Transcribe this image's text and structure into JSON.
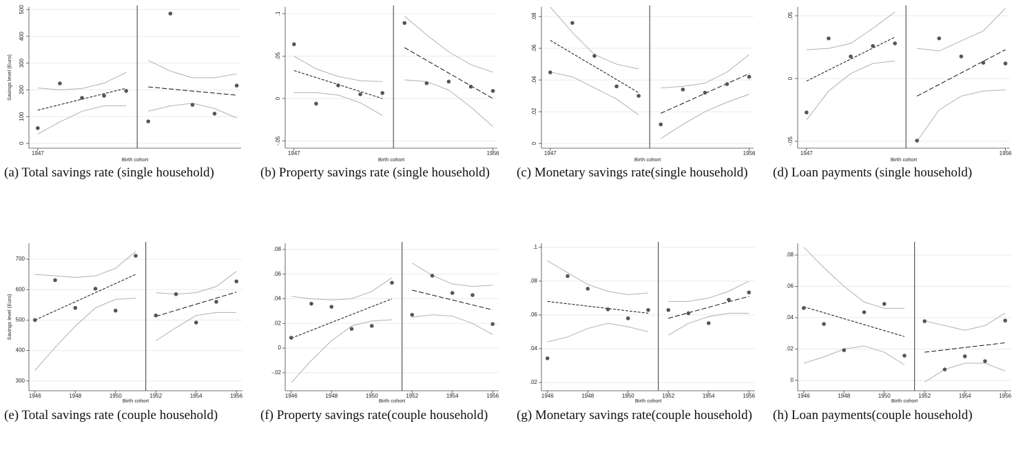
{
  "chart_data": [
    {
      "type": "scatter",
      "caption": "(a) Total savings rate (single household)",
      "xlabel": "Birth cohort",
      "ylabel": "Savings level (Euro)",
      "x": [
        1947,
        1948,
        1949,
        1950,
        1951,
        1952,
        1953,
        1954,
        1955,
        1956
      ],
      "values": [
        57,
        224,
        170,
        178,
        196,
        82,
        485,
        144,
        111,
        216
      ],
      "cutoff": 1951.5,
      "fit": [
        {
          "x": [
            1947,
            1951
          ],
          "values": [
            124,
            206
          ]
        },
        {
          "x": [
            1952,
            1956
          ],
          "values": [
            211,
            180
          ]
        }
      ],
      "ci": [
        {
          "x": [
            1947,
            1948,
            1949,
            1950,
            1951
          ],
          "upper": [
            207,
            200,
            205,
            225,
            265
          ],
          "lower": [
            35,
            80,
            120,
            140,
            140
          ]
        },
        {
          "x": [
            1952,
            1953,
            1954,
            1955,
            1956
          ],
          "upper": [
            310,
            270,
            245,
            245,
            260
          ],
          "lower": [
            120,
            140,
            150,
            130,
            95
          ]
        }
      ],
      "xlim": [
        1946.6,
        1956.2
      ],
      "ylim": [
        -18,
        510
      ],
      "xticks": [
        1947
      ],
      "yticks": [
        0,
        100,
        200,
        300,
        400,
        500
      ],
      "grid": true,
      "colors": {
        "points": "#555555",
        "fit": "#111111",
        "ci": "#b0b0b0",
        "cutoff": "#555555"
      }
    },
    {
      "type": "scatter",
      "caption": "(b) Property savings rate (single household)",
      "xlabel": "Birth cohort",
      "x": [
        1947,
        1948,
        1949,
        1950,
        1951,
        1952,
        1953,
        1954,
        1955,
        1956
      ],
      "values": [
        0.064,
        -0.006,
        0.0155,
        0.005,
        0.0065,
        0.089,
        0.018,
        0.02,
        0.014,
        0.009
      ],
      "cutoff": 1951.5,
      "fit": [
        {
          "x": [
            1947,
            1951
          ],
          "values": [
            0.033,
            0.0
          ]
        },
        {
          "x": [
            1952,
            1956
          ],
          "values": [
            0.06,
            0.0
          ]
        }
      ],
      "ci": [
        {
          "x": [
            1947,
            1948,
            1949,
            1950,
            1951
          ],
          "upper": [
            0.05,
            0.035,
            0.026,
            0.021,
            0.02
          ],
          "lower": [
            0.007,
            0.007,
            0.004,
            -0.005,
            -0.02
          ]
        },
        {
          "x": [
            1952,
            1953,
            1954,
            1955,
            1956
          ],
          "upper": [
            0.097,
            0.075,
            0.055,
            0.04,
            0.031
          ],
          "lower": [
            0.022,
            0.02,
            0.01,
            -0.01,
            -0.033
          ]
        }
      ],
      "xlim": [
        1946.6,
        1956.2
      ],
      "ylim": [
        -0.0585,
        0.108
      ],
      "xticks": [
        1947,
        1956
      ],
      "yticks": [
        {
          "value": -0.05,
          "label": "-.05"
        },
        0,
        {
          "value": 0.05,
          "label": ".05"
        },
        {
          "value": 0.1,
          "label": ".1"
        }
      ],
      "grid": true,
      "colors": {
        "points": "#555555",
        "fit": "#111111",
        "ci": "#b0b0b0",
        "cutoff": "#555555"
      }
    },
    {
      "type": "scatter",
      "caption": "(c) Monetary savings rate(single household)",
      "xlabel": "Birth cohort",
      "x": [
        1947,
        1948,
        1949,
        1950,
        1951,
        1952,
        1953,
        1954,
        1955,
        1956
      ],
      "values": [
        0.0448,
        0.076,
        0.0552,
        0.036,
        0.03,
        0.012,
        0.034,
        0.032,
        0.0374,
        0.042
      ],
      "cutoff": 1951.5,
      "fit": [
        {
          "x": [
            1947,
            1951
          ],
          "values": [
            0.065,
            0.032
          ]
        },
        {
          "x": [
            1952,
            1956
          ],
          "values": [
            0.019,
            0.044
          ]
        }
      ],
      "ci": [
        {
          "x": [
            1947,
            1948,
            1949,
            1950,
            1951
          ],
          "upper": [
            0.086,
            0.07,
            0.056,
            0.05,
            0.047
          ],
          "lower": [
            0.045,
            0.042,
            0.035,
            0.028,
            0.018
          ]
        },
        {
          "x": [
            1952,
            1953,
            1954,
            1955,
            1956
          ],
          "upper": [
            0.035,
            0.036,
            0.038,
            0.045,
            0.056
          ],
          "lower": [
            0.003,
            0.012,
            0.02,
            0.026,
            0.031
          ]
        }
      ],
      "xlim": [
        1946.6,
        1956.2
      ],
      "ylim": [
        -0.003,
        0.0861
      ],
      "xticks": [
        1947,
        1956
      ],
      "yticks": [
        0,
        {
          "value": 0.02,
          "label": ".02"
        },
        {
          "value": 0.04,
          "label": ".04"
        },
        {
          "value": 0.06,
          "label": ".06"
        },
        {
          "value": 0.08,
          "label": ".08"
        }
      ],
      "grid": true,
      "colors": {
        "points": "#555555",
        "fit": "#111111",
        "ci": "#b0b0b0",
        "cutoff": "#555555"
      }
    },
    {
      "type": "scatter",
      "caption": "(d) Loan payments (single household)",
      "xlabel": "Birth cohort",
      "x": [
        1947,
        1948,
        1949,
        1950,
        1951,
        1952,
        1953,
        1954,
        1955,
        1956
      ],
      "values": [
        -0.027,
        0.032,
        0.0176,
        0.026,
        0.028,
        -0.0495,
        0.032,
        0.0176,
        0.0126,
        0.012
      ],
      "cutoff": 1951.5,
      "fit": [
        {
          "x": [
            1947,
            1951
          ],
          "values": [
            -0.002,
            0.033
          ]
        },
        {
          "x": [
            1952,
            1956
          ],
          "values": [
            -0.014,
            0.023
          ]
        }
      ],
      "ci": [
        {
          "x": [
            1947,
            1948,
            1949,
            1950,
            1951
          ],
          "upper": [
            0.023,
            0.024,
            0.028,
            0.04,
            0.053
          ],
          "lower": [
            -0.033,
            -0.01,
            0.004,
            0.012,
            0.014
          ]
        },
        {
          "x": [
            1952,
            1953,
            1954,
            1955,
            1956
          ],
          "upper": [
            0.024,
            0.022,
            0.03,
            0.038,
            0.056
          ],
          "lower": [
            -0.05,
            -0.025,
            -0.014,
            -0.01,
            -0.009
          ]
        }
      ],
      "xlim": [
        1946.6,
        1956.2
      ],
      "ylim": [
        -0.0555,
        0.0571
      ],
      "xticks": [
        1947,
        1956
      ],
      "yticks": [
        {
          "value": -0.05,
          "label": "-.05"
        },
        0,
        {
          "value": 0.05,
          "label": ".05"
        }
      ],
      "grid": true,
      "colors": {
        "points": "#555555",
        "fit": "#111111",
        "ci": "#b0b0b0",
        "cutoff": "#555555"
      }
    },
    {
      "type": "scatter",
      "caption": "(e) Total savings rate (couple household)",
      "xlabel": "Birth cohort",
      "ylabel": "Savings level (Euro)",
      "x": [
        1946,
        1947,
        1948,
        1949,
        1950,
        1951,
        1952,
        1953,
        1954,
        1955,
        1956
      ],
      "values": [
        500,
        631,
        540,
        603,
        531,
        711,
        515,
        585,
        492,
        560,
        627
      ],
      "cutoff": 1951.5,
      "fit": [
        {
          "x": [
            1946,
            1951
          ],
          "values": [
            500,
            650
          ]
        },
        {
          "x": [
            1952,
            1956
          ],
          "values": [
            512,
            592
          ]
        }
      ],
      "ci": [
        {
          "x": [
            1946,
            1947,
            1948,
            1949,
            1950,
            1951
          ],
          "upper": [
            650,
            645,
            640,
            645,
            670,
            725
          ],
          "lower": [
            335,
            410,
            480,
            540,
            568,
            572
          ]
        },
        {
          "x": [
            1952,
            1953,
            1954,
            1955,
            1956
          ],
          "upper": [
            590,
            585,
            590,
            610,
            660
          ],
          "lower": [
            432,
            475,
            515,
            525,
            525
          ]
        }
      ],
      "xlim": [
        1945.7,
        1956.3
      ],
      "ylim": [
        268,
        752
      ],
      "xticks": [
        1946,
        1948,
        1950,
        1952,
        1954,
        1956
      ],
      "yticks": [
        300,
        400,
        500,
        600,
        700
      ],
      "grid": true,
      "colors": {
        "points": "#555555",
        "fit": "#111111",
        "ci": "#b0b0b0",
        "cutoff": "#555555"
      }
    },
    {
      "type": "scatter",
      "caption": "(f) Property savings rate(couple household)",
      "xlabel": "Birth cohort",
      "x": [
        1946,
        1947,
        1948,
        1949,
        1950,
        1951,
        1952,
        1953,
        1954,
        1955,
        1956
      ],
      "values": [
        0.0084,
        0.036,
        0.0335,
        0.0156,
        0.018,
        0.053,
        0.027,
        0.0587,
        0.0447,
        0.043,
        0.0195
      ],
      "cutoff": 1951.5,
      "fit": [
        {
          "x": [
            1946,
            1951
          ],
          "values": [
            0.008,
            0.04
          ]
        },
        {
          "x": [
            1952,
            1956
          ],
          "values": [
            0.047,
            0.031
          ]
        }
      ],
      "ci": [
        {
          "x": [
            1946,
            1947,
            1948,
            1949,
            1950,
            1951
          ],
          "upper": [
            0.042,
            0.04,
            0.039,
            0.04,
            0.046,
            0.057
          ],
          "lower": [
            -0.028,
            -0.01,
            0.006,
            0.018,
            0.022,
            0.023
          ]
        },
        {
          "x": [
            1952,
            1953,
            1954,
            1955,
            1956
          ],
          "upper": [
            0.069,
            0.059,
            0.052,
            0.05,
            0.051
          ],
          "lower": [
            0.025,
            0.027,
            0.026,
            0.02,
            0.011
          ]
        }
      ],
      "xlim": [
        1945.7,
        1956.3
      ],
      "ylim": [
        -0.0346,
        0.085
      ],
      "xticks": [
        1946,
        1948,
        1950,
        1952,
        1954,
        1956
      ],
      "yticks": [
        {
          "value": -0.02,
          "label": "-.02"
        },
        0,
        {
          "value": 0.02,
          "label": ".02"
        },
        {
          "value": 0.04,
          "label": ".04"
        },
        {
          "value": 0.06,
          "label": ".06"
        },
        {
          "value": 0.08,
          "label": ".08"
        }
      ],
      "grid": true,
      "colors": {
        "points": "#555555",
        "fit": "#111111",
        "ci": "#b0b0b0",
        "cutoff": "#555555"
      }
    },
    {
      "type": "scatter",
      "caption": "(g) Monetary savings rate(couple household)",
      "xlabel": "Birth cohort",
      "x": [
        1946,
        1947,
        1948,
        1949,
        1950,
        1951,
        1952,
        1953,
        1954,
        1955,
        1956
      ],
      "values": [
        0.0343,
        0.083,
        0.0755,
        0.0633,
        0.058,
        0.0629,
        0.0629,
        0.061,
        0.0551,
        0.069,
        0.0733
      ],
      "cutoff": 1951.5,
      "fit": [
        {
          "x": [
            1946,
            1951
          ],
          "values": [
            0.068,
            0.061
          ]
        },
        {
          "x": [
            1952,
            1956
          ],
          "values": [
            0.058,
            0.071
          ]
        }
      ],
      "ci": [
        {
          "x": [
            1946,
            1947,
            1948,
            1949,
            1950,
            1951
          ],
          "upper": [
            0.092,
            0.085,
            0.078,
            0.074,
            0.072,
            0.073
          ],
          "lower": [
            0.044,
            0.047,
            0.052,
            0.055,
            0.053,
            0.05
          ]
        },
        {
          "x": [
            1952,
            1953,
            1954,
            1955,
            1956
          ],
          "upper": [
            0.068,
            0.068,
            0.07,
            0.074,
            0.08
          ],
          "lower": [
            0.048,
            0.055,
            0.059,
            0.061,
            0.061
          ]
        }
      ],
      "xlim": [
        1945.7,
        1956.3
      ],
      "ylim": [
        0.0151,
        0.1024
      ],
      "xticks": [
        1946,
        1948,
        1950,
        1952,
        1954,
        1956
      ],
      "yticks": [
        {
          "value": 0.02,
          "label": ".02"
        },
        {
          "value": 0.04,
          "label": ".04"
        },
        {
          "value": 0.06,
          "label": ".06"
        },
        {
          "value": 0.08,
          "label": ".08"
        },
        {
          "value": 0.1,
          "label": ".1"
        }
      ],
      "grid": true,
      "colors": {
        "points": "#555555",
        "fit": "#111111",
        "ci": "#b0b0b0",
        "cutoff": "#555555"
      }
    },
    {
      "type": "scatter",
      "caption": "(h) Loan payments(couple household)",
      "xlabel": "Birth cohort",
      "x": [
        1946,
        1947,
        1948,
        1949,
        1950,
        1951,
        1952,
        1953,
        1954,
        1955,
        1956
      ],
      "values": [
        0.0462,
        0.036,
        0.0193,
        0.0435,
        0.0488,
        0.0158,
        0.0378,
        0.007,
        0.0154,
        0.0123,
        0.0382
      ],
      "cutoff": 1951.5,
      "fit": [
        {
          "x": [
            1946,
            1951
          ],
          "values": [
            0.047,
            0.028
          ]
        },
        {
          "x": [
            1952,
            1956
          ],
          "values": [
            0.018,
            0.024
          ]
        }
      ],
      "ci": [
        {
          "x": [
            1946,
            1947,
            1948,
            1949,
            1950,
            1951
          ],
          "upper": [
            0.085,
            0.072,
            0.06,
            0.05,
            0.046,
            0.046
          ],
          "lower": [
            0.011,
            0.015,
            0.02,
            0.022,
            0.018,
            0.01
          ]
        },
        {
          "x": [
            1952,
            1953,
            1954,
            1955,
            1956
          ],
          "upper": [
            0.038,
            0.035,
            0.032,
            0.035,
            0.043
          ],
          "lower": [
            -0.001,
            0.007,
            0.011,
            0.011,
            0.006
          ]
        }
      ],
      "xlim": [
        1945.7,
        1956.3
      ],
      "ylim": [
        -0.0066,
        0.0875
      ],
      "xticks": [
        1946,
        1948,
        1950,
        1952,
        1954,
        1956
      ],
      "yticks": [
        0,
        {
          "value": 0.02,
          "label": ".02"
        },
        {
          "value": 0.04,
          "label": ".04"
        },
        {
          "value": 0.06,
          "label": ".06"
        },
        {
          "value": 0.08,
          "label": ".08"
        }
      ],
      "grid": true,
      "colors": {
        "points": "#555555",
        "fit": "#111111",
        "ci": "#b0b0b0",
        "cutoff": "#555555"
      }
    }
  ]
}
